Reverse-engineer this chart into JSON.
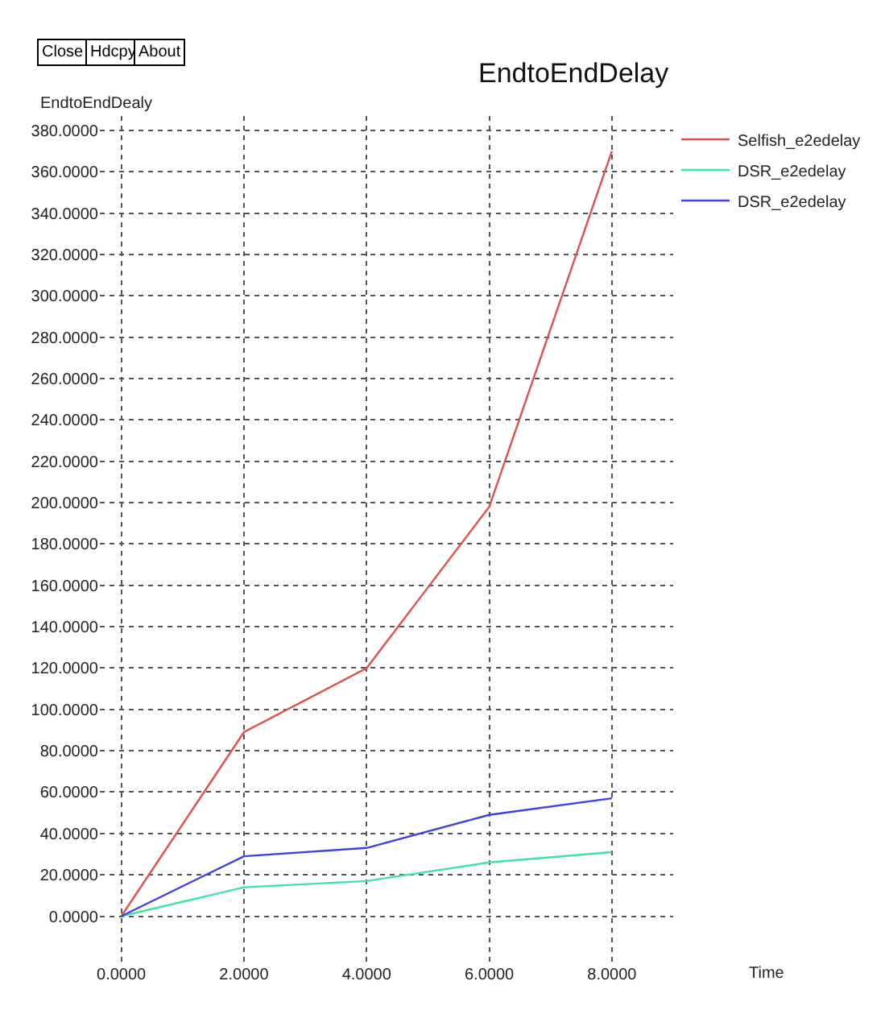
{
  "chart_data": {
    "type": "line",
    "title": "EndtoEndDelay",
    "ylabel": "EndtoEndDealy",
    "xlabel": "Time",
    "annotations": [
      "Close",
      "Hdcpy",
      "About"
    ],
    "x": [
      0,
      2,
      4,
      6,
      8
    ],
    "series": [
      {
        "name": "Selfish_e2edelay",
        "color": "#e05050",
        "values": [
          0,
          89,
          120,
          198,
          370
        ]
      },
      {
        "name": "DSR_e2edelay",
        "color": "#40e0b0",
        "values": [
          0,
          14,
          17,
          26,
          31
        ]
      },
      {
        "name": "DSR_e2edelay",
        "color": "#4040e0",
        "values": [
          0,
          29,
          33,
          49,
          57
        ]
      }
    ],
    "xlim": [
      -0.35,
      9.0
    ],
    "xticks": [
      {
        "value": 0,
        "label": "0.0000"
      },
      {
        "value": 2,
        "label": "2.0000"
      },
      {
        "value": 4,
        "label": "4.0000"
      },
      {
        "value": 6,
        "label": "6.0000"
      },
      {
        "value": 8,
        "label": "8.0000"
      }
    ],
    "ylim": [
      -22,
      387
    ],
    "yticks": [
      {
        "value": 0,
        "label": "0.0000"
      },
      {
        "value": 20,
        "label": "20.0000"
      },
      {
        "value": 40,
        "label": "40.0000"
      },
      {
        "value": 60,
        "label": "60.0000"
      },
      {
        "value": 80,
        "label": "80.0000"
      },
      {
        "value": 100,
        "label": "100.0000"
      },
      {
        "value": 120,
        "label": "120.0000"
      },
      {
        "value": 140,
        "label": "140.0000"
      },
      {
        "value": 160,
        "label": "160.0000"
      },
      {
        "value": 180,
        "label": "180.0000"
      },
      {
        "value": 200,
        "label": "200.0000"
      },
      {
        "value": 220,
        "label": "220.0000"
      },
      {
        "value": 240,
        "label": "240.0000"
      },
      {
        "value": 260,
        "label": "260.0000"
      },
      {
        "value": 280,
        "label": "280.0000"
      },
      {
        "value": 300,
        "label": "300.0000"
      },
      {
        "value": 320,
        "label": "320.0000"
      },
      {
        "value": 340,
        "label": "340.0000"
      },
      {
        "value": 360,
        "label": "360.0000"
      },
      {
        "value": 380,
        "label": "380.0000"
      }
    ],
    "grid": true,
    "legend": "top right",
    "line_style": "solid"
  }
}
